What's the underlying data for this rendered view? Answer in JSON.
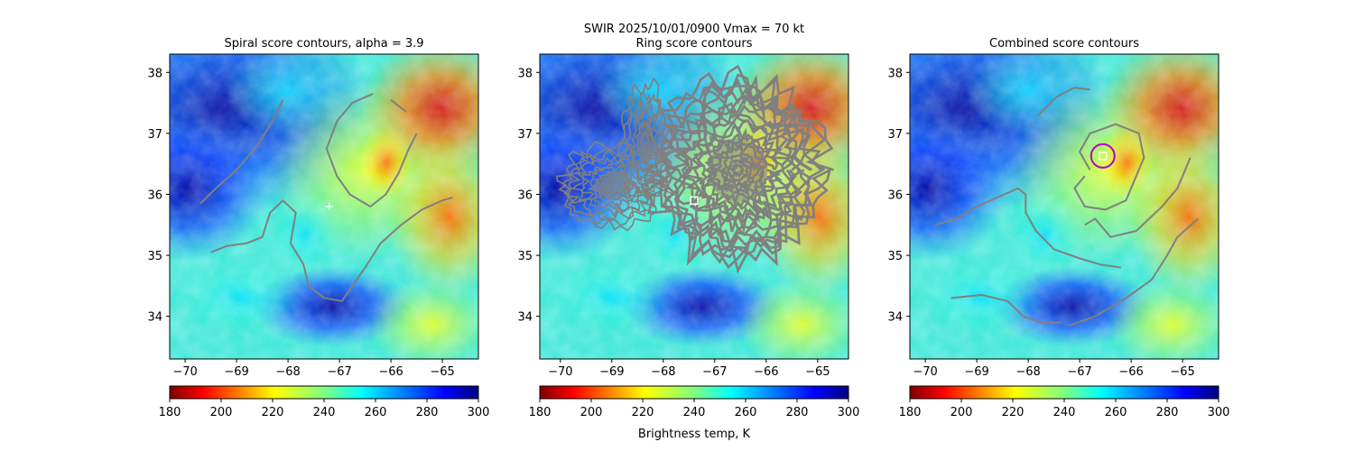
{
  "figure": {
    "suptitle_line1": "SWIR  2025/10/01/0900    Vmax = 70 kt",
    "colorbar_label": "Brightness temp, K"
  },
  "colors": {
    "contour": "#808080",
    "marker": "#ffffff",
    "circle": "#b000c8"
  },
  "chart_data": [
    {
      "type": "heatmap",
      "title": "Spiral score contours, alpha =  3.9",
      "xlim": [
        -70.3,
        -64.3
      ],
      "ylim": [
        33.3,
        38.3
      ],
      "xticks": [
        "-70",
        "-69",
        "-68",
        "-67",
        "-66",
        "-65"
      ],
      "yticks": [
        "34",
        "35",
        "36",
        "37",
        "38"
      ],
      "colorbar": {
        "range": [
          180,
          300
        ],
        "ticks": [
          "180",
          "200",
          "220",
          "240",
          "260",
          "280",
          "300"
        ],
        "colormap": "jet_r"
      },
      "contours": [
        [
          [
            -69.7,
            35.85
          ],
          [
            -69.4,
            36.1
          ],
          [
            -69.0,
            36.4
          ],
          [
            -68.6,
            36.8
          ],
          [
            -68.3,
            37.2
          ],
          [
            -68.1,
            37.55
          ]
        ],
        [
          [
            -69.5,
            35.05
          ],
          [
            -69.2,
            35.15
          ],
          [
            -68.8,
            35.2
          ],
          [
            -68.5,
            35.3
          ],
          [
            -68.35,
            35.7
          ],
          [
            -68.1,
            35.9
          ],
          [
            -67.85,
            35.7
          ],
          [
            -67.95,
            35.2
          ],
          [
            -67.7,
            34.85
          ],
          [
            -67.6,
            34.5
          ],
          [
            -67.3,
            34.3
          ],
          [
            -66.95,
            34.25
          ],
          [
            -66.75,
            34.5
          ],
          [
            -66.5,
            34.8
          ],
          [
            -66.2,
            35.2
          ],
          [
            -65.8,
            35.5
          ],
          [
            -65.4,
            35.75
          ],
          [
            -65.0,
            35.9
          ],
          [
            -64.8,
            35.95
          ]
        ],
        [
          [
            -66.35,
            37.65
          ],
          [
            -66.75,
            37.5
          ],
          [
            -67.05,
            37.2
          ],
          [
            -67.25,
            36.75
          ],
          [
            -67.05,
            36.3
          ],
          [
            -66.8,
            36.0
          ],
          [
            -66.4,
            35.8
          ],
          [
            -66.1,
            36.0
          ],
          [
            -65.85,
            36.35
          ],
          [
            -65.65,
            36.75
          ],
          [
            -65.5,
            37.0
          ]
        ],
        [
          [
            -66.0,
            37.55
          ],
          [
            -65.7,
            37.35
          ]
        ]
      ],
      "markers": [
        {
          "x": -67.2,
          "y": 35.8,
          "kind": "plus"
        }
      ]
    },
    {
      "type": "heatmap",
      "title": "Ring score contours",
      "xlim": [
        -70.4,
        -64.4
      ],
      "ylim": [
        33.3,
        38.3
      ],
      "xticks": [
        "-70",
        "-69",
        "-68",
        "-67",
        "-66",
        "-65"
      ],
      "yticks": [
        "34",
        "35",
        "36",
        "37",
        "38"
      ],
      "colorbar": {
        "range": [
          180,
          300
        ],
        "ticks": [
          "180",
          "200",
          "220",
          "240",
          "260",
          "280",
          "300"
        ],
        "colormap": "jet_r"
      },
      "contour_regions": [
        {
          "cx": -68.95,
          "cy": 36.15,
          "rx": 1.05,
          "ry": 0.65
        },
        {
          "cx": -68.35,
          "cy": 36.85,
          "rx": 0.45,
          "ry": 0.95
        },
        {
          "cx": -66.55,
          "cy": 36.4,
          "rx": 1.65,
          "ry": 1.5
        }
      ],
      "markers": [
        {
          "x": -67.4,
          "y": 35.9,
          "kind": "square"
        }
      ]
    },
    {
      "type": "heatmap",
      "title": "Combined score contours",
      "xlim": [
        -70.3,
        -64.3
      ],
      "ylim": [
        33.3,
        38.3
      ],
      "xticks": [
        "-70",
        "-69",
        "-68",
        "-67",
        "-66",
        "-65"
      ],
      "yticks": [
        "34",
        "35",
        "36",
        "37",
        "38"
      ],
      "colorbar": {
        "range": [
          180,
          300
        ],
        "ticks": [
          "180",
          "200",
          "220",
          "240",
          "260",
          "280",
          "300"
        ],
        "colormap": "jet_r"
      },
      "contours": [
        [
          [
            -69.8,
            35.5
          ],
          [
            -69.4,
            35.6
          ],
          [
            -69.0,
            35.8
          ],
          [
            -68.6,
            35.95
          ],
          [
            -68.2,
            36.1
          ],
          [
            -68.05,
            36.0
          ],
          [
            -68.05,
            35.7
          ],
          [
            -67.85,
            35.4
          ],
          [
            -67.5,
            35.1
          ],
          [
            -67.0,
            34.95
          ],
          [
            -66.6,
            34.85
          ],
          [
            -66.2,
            34.8
          ]
        ],
        [
          [
            -67.8,
            37.3
          ],
          [
            -67.45,
            37.6
          ],
          [
            -67.1,
            37.75
          ],
          [
            -66.8,
            37.72
          ]
        ],
        [
          [
            -66.8,
            36.4
          ],
          [
            -67.0,
            36.7
          ],
          [
            -66.8,
            37.0
          ],
          [
            -66.3,
            37.15
          ],
          [
            -65.85,
            37.0
          ],
          [
            -65.75,
            36.6
          ],
          [
            -65.95,
            36.2
          ],
          [
            -66.1,
            35.9
          ],
          [
            -66.5,
            35.75
          ],
          [
            -66.9,
            35.8
          ],
          [
            -67.1,
            36.1
          ],
          [
            -66.9,
            36.3
          ]
        ],
        [
          [
            -64.85,
            36.6
          ],
          [
            -65.1,
            36.1
          ],
          [
            -65.4,
            35.8
          ],
          [
            -65.9,
            35.4
          ],
          [
            -66.4,
            35.3
          ],
          [
            -66.7,
            35.6
          ],
          [
            -66.9,
            35.5
          ]
        ],
        [
          [
            -69.5,
            34.3
          ],
          [
            -68.9,
            34.35
          ],
          [
            -68.4,
            34.25
          ],
          [
            -68.1,
            34.0
          ],
          [
            -67.75,
            33.9
          ],
          [
            -67.35,
            33.9
          ]
        ],
        [
          [
            -67.2,
            33.85
          ],
          [
            -66.7,
            34.0
          ],
          [
            -66.1,
            34.3
          ],
          [
            -65.6,
            34.6
          ],
          [
            -65.3,
            35.0
          ],
          [
            -65.1,
            35.3
          ],
          [
            -64.7,
            35.6
          ]
        ]
      ],
      "markers": [
        {
          "x": -66.55,
          "y": 36.63,
          "kind": "square"
        }
      ],
      "circle": {
        "x": -66.55,
        "y": 36.63
      }
    }
  ]
}
